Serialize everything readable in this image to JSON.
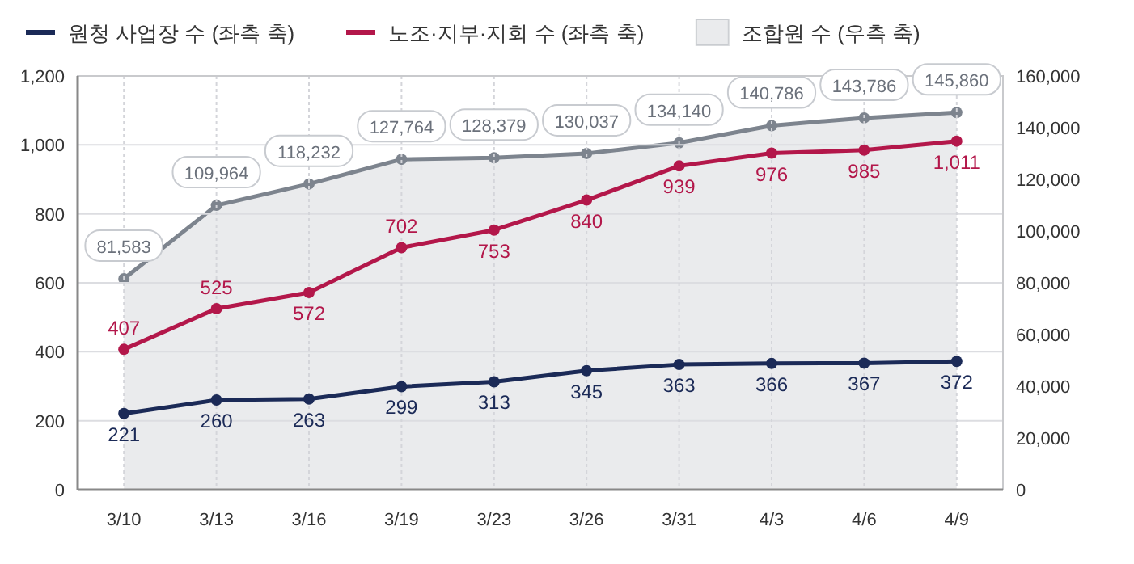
{
  "chart_data": {
    "type": "line",
    "categories": [
      "3/10",
      "3/13",
      "3/16",
      "3/19",
      "3/23",
      "3/26",
      "3/31",
      "4/3",
      "4/6",
      "4/9"
    ],
    "series": [
      {
        "name": "원청 사업장 수 (좌측 축)",
        "color": "#1b2a57",
        "values": [
          221,
          260,
          263,
          299,
          313,
          345,
          363,
          366,
          367,
          372
        ],
        "value_labels": [
          "221",
          "260",
          "263",
          "299",
          "313",
          "345",
          "363",
          "366",
          "367",
          "372"
        ]
      },
      {
        "name": "노조·지부·지회 수 (좌측 축)",
        "color": "#b3174a",
        "values": [
          407,
          525,
          572,
          702,
          753,
          840,
          939,
          976,
          985,
          1011
        ],
        "value_labels": [
          "407",
          "525",
          "572",
          "702",
          "753",
          "840",
          "939",
          "976",
          "985",
          "1,011"
        ]
      },
      {
        "name": "조합원 수 (우측 축)",
        "type": "area",
        "axis": "y2",
        "color": "#7d848e",
        "values": [
          81583,
          109964,
          118232,
          127764,
          128379,
          130037,
          134140,
          140786,
          143786,
          145860
        ],
        "value_labels": [
          "81,583",
          "109,964",
          "118,232",
          "127,764",
          "128,379",
          "130,037",
          "134,140",
          "140,786",
          "143,786",
          "145,860"
        ]
      }
    ],
    "ylim": [
      0,
      1200
    ],
    "yticks": [
      0,
      {
        "value": 200,
        "label": "200"
      },
      {
        "value": 400,
        "label": "400"
      },
      {
        "value": 600,
        "label": "600"
      },
      {
        "value": 800,
        "label": "800"
      },
      {
        "value": 1000,
        "label": "1,000"
      },
      {
        "value": 1200,
        "label": "1,200"
      }
    ],
    "y2lim": [
      0,
      160000
    ],
    "y2ticks": [
      0,
      {
        "value": 20000,
        "label": "20,000"
      },
      {
        "value": 40000,
        "label": "40,000"
      },
      {
        "value": 60000,
        "label": "60,000"
      },
      {
        "value": 80000,
        "label": "80,000"
      },
      {
        "value": 100000,
        "label": "100,000"
      },
      {
        "value": 120000,
        "label": "120,000"
      },
      {
        "value": 140000,
        "label": "140,000"
      },
      {
        "value": 160000,
        "label": "160,000"
      }
    ],
    "grid": true,
    "legend": "top",
    "marker": "circle"
  }
}
